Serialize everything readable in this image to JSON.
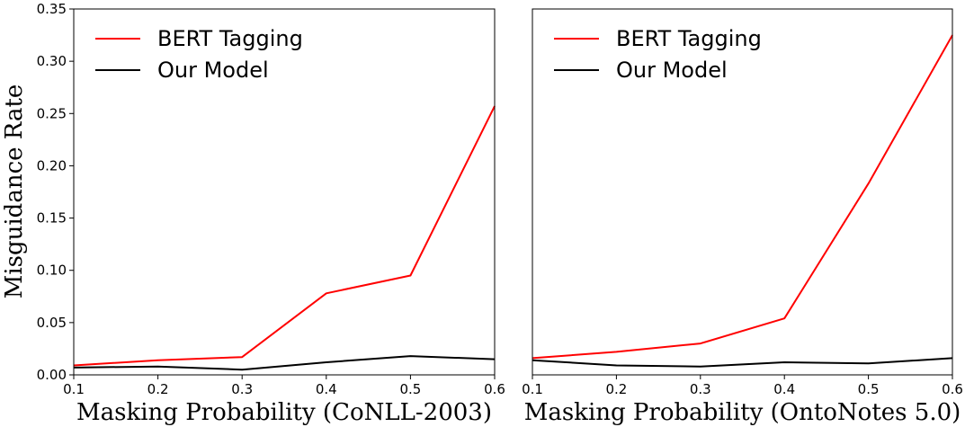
{
  "chart_data": [
    {
      "type": "line",
      "xlabel": "Masking Probability (CoNLL-2003)",
      "ylabel": "Misguidance Rate",
      "x": [
        0.1,
        0.2,
        0.3,
        0.4,
        0.5,
        0.6
      ],
      "xlim": [
        0.1,
        0.6
      ],
      "ylim": [
        0,
        0.35
      ],
      "xticks": [
        "0.1",
        "0.2",
        "0.3",
        "0.4",
        "0.5",
        "0.6"
      ],
      "yticks": [
        "0.00",
        "0.05",
        "0.10",
        "0.15",
        "0.20",
        "0.25",
        "0.30",
        "0.35"
      ],
      "ytick_values": [
        0,
        0.05,
        0.1,
        0.15,
        0.2,
        0.25,
        0.3,
        0.35
      ],
      "legend_position": "top-left",
      "series": [
        {
          "name": "BERT Tagging",
          "color": "#ff0000",
          "values": [
            0.009,
            0.014,
            0.017,
            0.078,
            0.095,
            0.257
          ]
        },
        {
          "name": "Our Model",
          "color": "#000000",
          "values": [
            0.007,
            0.008,
            0.005,
            0.012,
            0.018,
            0.015
          ]
        }
      ]
    },
    {
      "type": "line",
      "xlabel": "Masking Probability (OntoNotes 5.0)",
      "ylabel": "",
      "x": [
        0.1,
        0.2,
        0.3,
        0.4,
        0.5,
        0.6
      ],
      "xlim": [
        0.1,
        0.6
      ],
      "ylim": [
        0,
        0.35
      ],
      "xticks": [
        "0.1",
        "0.2",
        "0.3",
        "0.4",
        "0.5",
        "0.6"
      ],
      "yticks": [],
      "ytick_values": [],
      "legend_position": "top-left",
      "series": [
        {
          "name": "BERT Tagging",
          "color": "#ff0000",
          "values": [
            0.016,
            0.022,
            0.03,
            0.054,
            0.183,
            0.325
          ]
        },
        {
          "name": "Our Model",
          "color": "#000000",
          "values": [
            0.014,
            0.009,
            0.008,
            0.012,
            0.011,
            0.016
          ]
        }
      ]
    }
  ]
}
